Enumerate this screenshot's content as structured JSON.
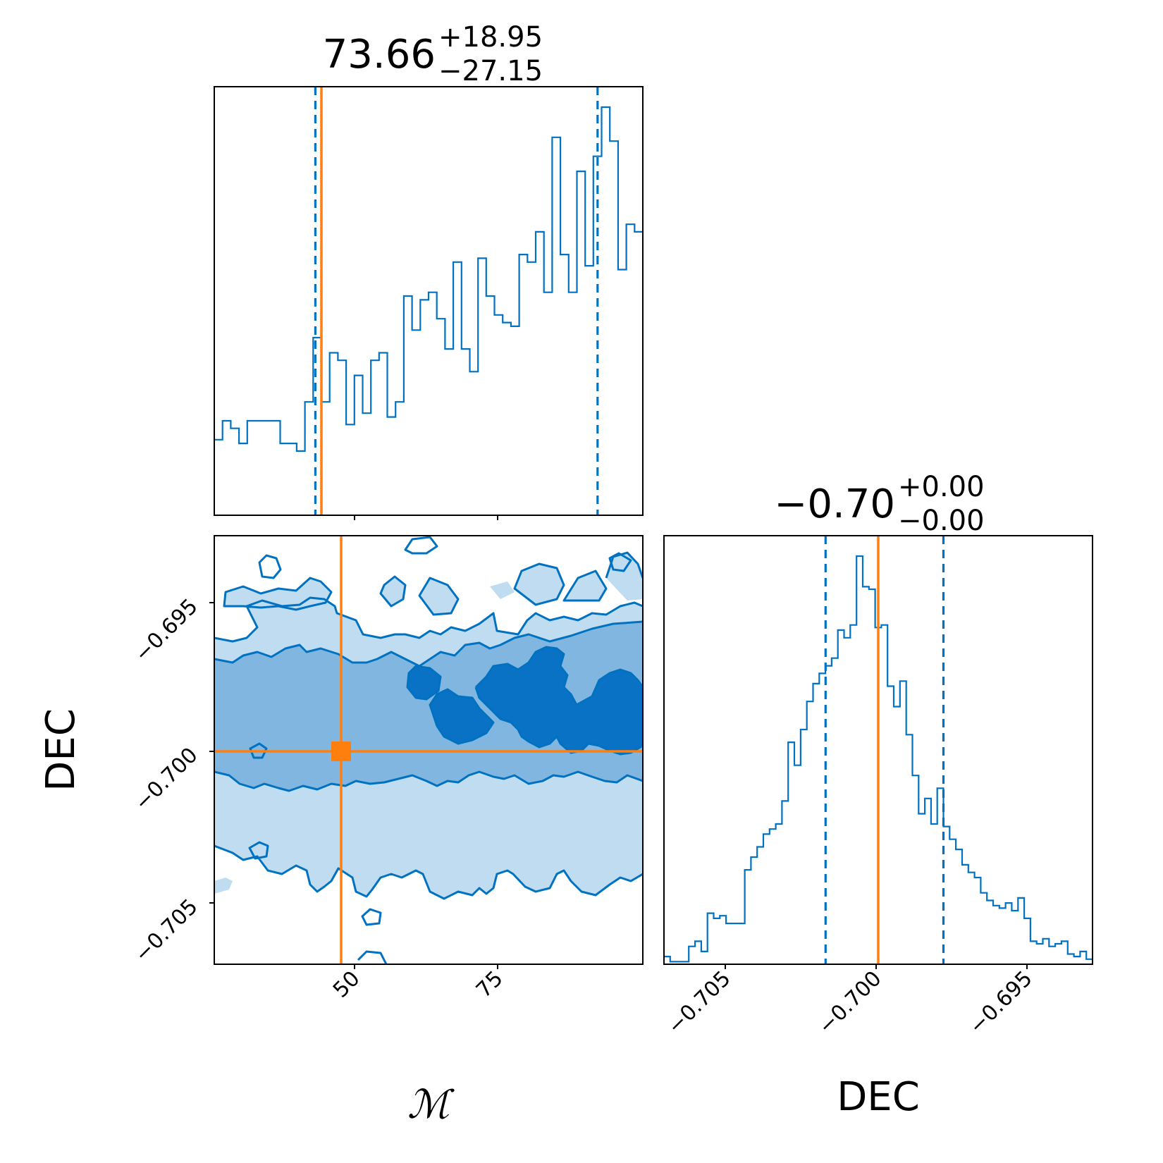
{
  "chart_data": [
    {
      "panel": "M-marginal",
      "type": "histogram",
      "title": {
        "median": "73.66",
        "plus": "+18.95",
        "minus": "−27.15"
      },
      "xlim": [
        30,
        100
      ],
      "bin_values": [
        2,
        2.5,
        2.3,
        1.9,
        2.5,
        2.5,
        2.5,
        2.5,
        1.9,
        1.9,
        1.7,
        3.0,
        4.7,
        3.0,
        4.3,
        4.1,
        2.4,
        3.7,
        2.7,
        4.1,
        4.3,
        2.6,
        3.0,
        5.8,
        4.9,
        5.7,
        5.9,
        5.2,
        4.4,
        6.7,
        4.4,
        3.8,
        6.8,
        5.8,
        5.3,
        5.1,
        5.0,
        6.9,
        6.7,
        7.5,
        5.9,
        10.0,
        6.9,
        5.9,
        9.1,
        6.6,
        9.5,
        10.8,
        9.9,
        6.5,
        7.7,
        7.5
      ],
      "quantiles": [
        46.51,
        92.61
      ],
      "truth": 47.5
    },
    {
      "panel": "DEC-marginal",
      "type": "histogram",
      "title": {
        "median": "−0.70",
        "plus": "+0.00",
        "minus": "−0.00"
      },
      "xlim": [
        -0.707,
        -0.693
      ],
      "xticks": [
        "−0.705",
        "−0.700",
        "−0.695"
      ],
      "xlabel": "DEC",
      "bin_values": [
        0.3,
        0.1,
        0.1,
        0.1,
        0.7,
        0.9,
        0.5,
        2.0,
        1.8,
        1.9,
        1.6,
        1.6,
        1.6,
        3.7,
        4.2,
        4.6,
        5.1,
        5.3,
        5.5,
        6.4,
        8.7,
        7.8,
        9.2,
        10.3,
        11.0,
        11.4,
        11.7,
        12.0,
        13.1,
        12.8,
        13.3,
        16.0,
        14.8,
        14.7,
        13.2,
        13.3,
        10.9,
        10.1,
        11.1,
        9.0,
        7.4,
        5.9,
        6.5,
        5.5,
        6.9,
        5.4,
        4.9,
        4.5,
        3.9,
        3.6,
        3.4,
        2.8,
        2.5,
        2.3,
        2.2,
        2.4,
        2.1,
        2.6,
        1.8,
        0.9,
        0.8,
        1.0,
        0.7,
        0.8,
        0.9,
        0.4,
        0.3,
        0.5,
        0.2
      ],
      "quantiles": [
        -0.70172,
        -0.69787
      ],
      "truth": -0.7
    },
    {
      "panel": "M-DEC-2D",
      "type": "contour",
      "xlim": [
        30,
        100
      ],
      "ylim": [
        -0.707,
        -0.6928
      ],
      "xticks": [
        "50",
        "75"
      ],
      "yticks": [
        "−0.695",
        "−0.700",
        "−0.705"
      ],
      "xlabel": "ℳ",
      "ylabel": "DEC",
      "levels": [
        "outer",
        "middle",
        "inner"
      ],
      "truth": {
        "x": 47.5,
        "y": -0.7
      }
    }
  ],
  "colors": {
    "posterior": "#0072c1",
    "truth": "#ff7f0e"
  }
}
